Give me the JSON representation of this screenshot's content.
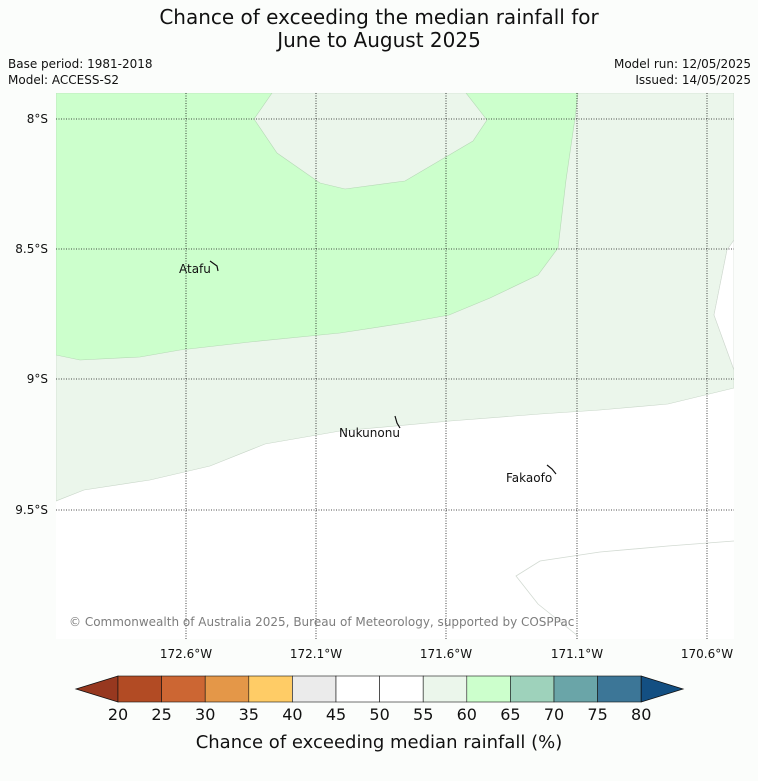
{
  "title": {
    "line1": "Chance of exceeding the median rainfall for",
    "line2": "June to August 2025"
  },
  "meta": {
    "base_period": "Base period: 1981-2018",
    "model": "Model: ACCESS-S2",
    "model_run": "Model run: 12/05/2025",
    "issued": "Issued: 14/05/2025"
  },
  "map": {
    "lat_labels": [
      "8°S",
      "8.5°S",
      "9°S",
      "9.5°S"
    ],
    "lon_labels": [
      "172.6°W",
      "172.1°W",
      "171.6°W",
      "171.1°W",
      "170.6°W"
    ],
    "places": [
      "Atafu",
      "Nukunonu",
      "Fakaofo"
    ],
    "copyright": "© Commonwealth of Australia 2025, Bureau of Meteorology, supported by COSPPac",
    "colors": {
      "zone_60_65": "#ccffcc",
      "zone_55_60": "#ebf6eb",
      "zone_50_55": "#ffffff"
    }
  },
  "legend": {
    "title": "Chance of exceeding median rainfall (%)",
    "ticks": [
      "20",
      "25",
      "30",
      "35",
      "40",
      "45",
      "50",
      "55",
      "60",
      "65",
      "70",
      "75",
      "80"
    ],
    "colors": [
      "#b24b24",
      "#cc6633",
      "#e49748",
      "#ffcc66",
      "#ebebeb",
      "#ffffff",
      "#ffffff",
      "#ebf6eb",
      "#ccffcc",
      "#9ed2bb",
      "#6aa5a8",
      "#3c7697"
    ],
    "low_arrow_color": "#97381f",
    "high_arrow_color": "#134f82"
  }
}
